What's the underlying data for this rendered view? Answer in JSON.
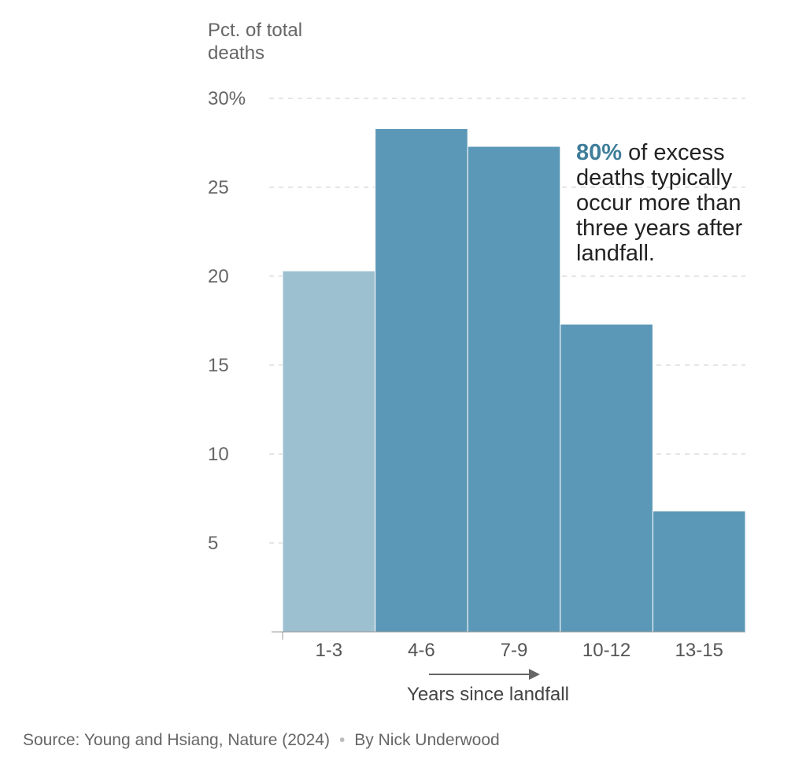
{
  "chart_data": {
    "type": "bar",
    "ylabel_lines": [
      "Pct. of total",
      "deaths"
    ],
    "xlabel": "Years since landfall",
    "categories": [
      "1-3",
      "4-6",
      "7-9",
      "10-12",
      "13-15"
    ],
    "values": [
      20.3,
      28.3,
      27.3,
      17.3,
      6.8
    ],
    "highlight_index": 0,
    "ylim": [
      0,
      30
    ],
    "yticks": [
      5,
      10,
      15,
      20,
      25,
      30
    ],
    "ytick_labels": [
      "5",
      "10",
      "15",
      "20",
      "25",
      "30%"
    ],
    "grid": true,
    "colors": {
      "highlight": "#9dc0d1",
      "default": "#5b97b6",
      "annotation_accent": "#3f7e9a"
    },
    "annotation": {
      "highlight": "80%",
      "lines": [
        " of excess",
        "deaths typically",
        "occur more than",
        "three years after",
        "landfall."
      ]
    }
  },
  "footer": {
    "source": "Source: Young and Hsiang, Nature (2024)",
    "separator": "•",
    "byline": "By Nick Underwood"
  }
}
